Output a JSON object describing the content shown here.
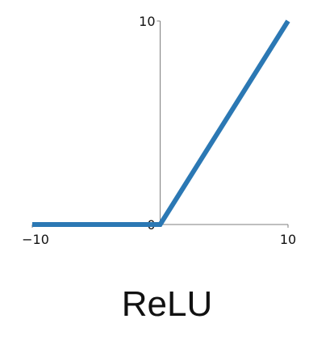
{
  "title": "ReLU",
  "chart_data": {
    "type": "line",
    "title": "ReLU",
    "xlabel": "",
    "ylabel": "",
    "xlim": [
      -10,
      10
    ],
    "ylim": [
      0,
      10
    ],
    "x_ticks": [
      "−10",
      "10"
    ],
    "y_ticks": [
      "10"
    ],
    "origin_label": "0",
    "grid": false,
    "series": [
      {
        "x": [
          -10,
          0,
          10
        ],
        "y": [
          0,
          0,
          10
        ],
        "color": "#2b78b4"
      }
    ]
  }
}
